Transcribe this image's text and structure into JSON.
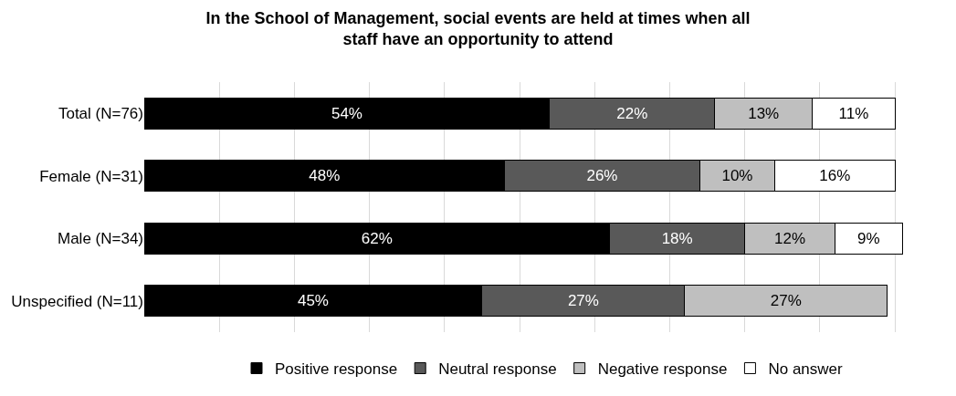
{
  "chart_data": {
    "type": "bar",
    "orientation": "horizontal",
    "stacked": true,
    "title": "In the School of Management, social events are held at times when all staff have an opportunity to attend",
    "categories": [
      "Total (N=76)",
      "Female (N=31)",
      "Male (N=34)",
      "Unspecified (N=11)"
    ],
    "series": [
      {
        "name": "Positive response",
        "color": "#000000",
        "values": [
          54,
          48,
          62,
          45
        ],
        "value_labels": [
          "54%",
          "48%",
          "62%",
          "45%"
        ]
      },
      {
        "name": "Neutral response",
        "color": "#595959",
        "values": [
          22,
          26,
          18,
          27
        ],
        "value_labels": [
          "22%",
          "26%",
          "18%",
          "27%"
        ]
      },
      {
        "name": "Negative response",
        "color": "#bfbfbf",
        "values": [
          13,
          10,
          12,
          27
        ],
        "value_labels": [
          "13%",
          "10%",
          "12%",
          "27%"
        ]
      },
      {
        "name": "No answer",
        "color": "#ffffff",
        "values": [
          11,
          16,
          9,
          null
        ],
        "value_labels": [
          "11%",
          "16%",
          "9%",
          null
        ]
      }
    ],
    "grid": "x",
    "legend": "bottom",
    "tick_labels": "y"
  }
}
